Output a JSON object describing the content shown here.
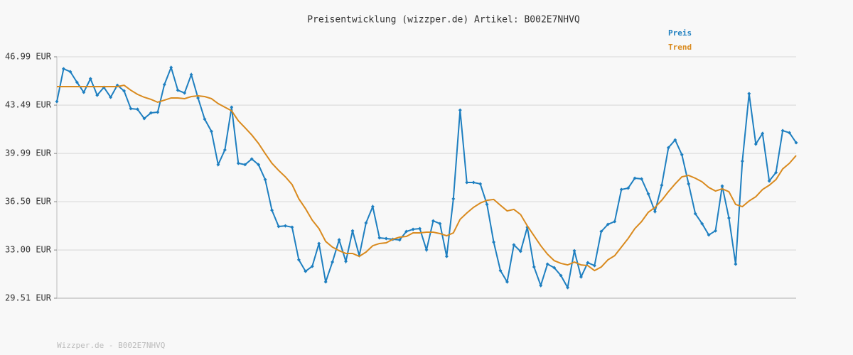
{
  "chart_data": {
    "type": "line",
    "title": "Preisentwicklung (wizzper.de) Artikel: B002E7NHVQ",
    "footer": "Wizzper.de - B002E7NHVQ",
    "ylim": [
      29.51,
      46.99
    ],
    "yticks": [
      {
        "value": 29.51,
        "label": "29.51 EUR"
      },
      {
        "value": 33.0,
        "label": "33.00 EUR"
      },
      {
        "value": 36.5,
        "label": "36.50 EUR"
      },
      {
        "value": 39.99,
        "label": "39.99 EUR"
      },
      {
        "value": 43.49,
        "label": "43.49 EUR"
      },
      {
        "value": 46.99,
        "label": "46.99 EUR"
      }
    ],
    "grid": true,
    "legend": "top-right",
    "series": [
      {
        "name": "Preis",
        "color": "#1e7fc0",
        "markers": true,
        "values": [
          43.75,
          46.12,
          45.91,
          45.14,
          44.42,
          45.4,
          44.21,
          44.78,
          44.06,
          44.93,
          44.52,
          43.24,
          43.19,
          42.52,
          42.93,
          42.98,
          44.98,
          46.22,
          44.57,
          44.37,
          45.7,
          44.01,
          42.47,
          41.59,
          39.18,
          40.25,
          43.34,
          39.28,
          39.18,
          39.59,
          39.18,
          38.1,
          35.88,
          34.7,
          34.75,
          34.65,
          32.29,
          31.46,
          31.82,
          33.47,
          30.69,
          32.13,
          33.73,
          32.18,
          34.39,
          32.59,
          34.96,
          36.14,
          33.88,
          33.83,
          33.78,
          33.73,
          34.34,
          34.5,
          34.55,
          33.01,
          35.11,
          34.91,
          32.54,
          36.71,
          43.13,
          37.89,
          37.89,
          37.79,
          36.3,
          33.57,
          31.51,
          30.69,
          33.37,
          32.9,
          34.65,
          31.77,
          30.43,
          31.98,
          31.72,
          31.15,
          30.28,
          32.95,
          31.05,
          32.08,
          31.87,
          34.34,
          34.86,
          35.06,
          37.38,
          37.48,
          38.2,
          38.15,
          37.07,
          35.78,
          37.69,
          40.41,
          40.97,
          39.9,
          37.79,
          35.63,
          34.91,
          34.09,
          34.39,
          37.63,
          35.32,
          31.98,
          39.43,
          44.32,
          40.67,
          41.44,
          38.0,
          38.61,
          41.64,
          41.49,
          40.77
        ]
      },
      {
        "name": "Trend",
        "color": "#d98a1e",
        "markers": false,
        "values": [
          44.83,
          44.83,
          44.83,
          44.83,
          44.83,
          44.83,
          44.83,
          44.83,
          44.83,
          44.83,
          44.93,
          44.57,
          44.27,
          44.06,
          43.91,
          43.7,
          43.85,
          44.01,
          44.01,
          43.96,
          44.11,
          44.16,
          44.11,
          43.96,
          43.6,
          43.34,
          43.08,
          42.36,
          41.85,
          41.33,
          40.72,
          39.98,
          39.28,
          38.76,
          38.3,
          37.74,
          36.71,
          35.99,
          35.16,
          34.55,
          33.62,
          33.21,
          32.95,
          32.75,
          32.75,
          32.54,
          32.85,
          33.31,
          33.47,
          33.52,
          33.78,
          33.93,
          33.98,
          34.24,
          34.24,
          34.29,
          34.29,
          34.19,
          34.03,
          34.24,
          35.22,
          35.68,
          36.09,
          36.4,
          36.6,
          36.66,
          36.24,
          35.83,
          35.94,
          35.57,
          34.75,
          34.03,
          33.31,
          32.7,
          32.23,
          32.03,
          31.92,
          32.13,
          31.92,
          31.87,
          31.51,
          31.77,
          32.29,
          32.59,
          33.21,
          33.83,
          34.55,
          35.06,
          35.73,
          36.09,
          36.6,
          37.22,
          37.79,
          38.3,
          38.4,
          38.2,
          37.94,
          37.53,
          37.27,
          37.43,
          37.22,
          36.3,
          36.14,
          36.55,
          36.86,
          37.38,
          37.69,
          38.1,
          38.87,
          39.28,
          39.84
        ]
      }
    ]
  }
}
